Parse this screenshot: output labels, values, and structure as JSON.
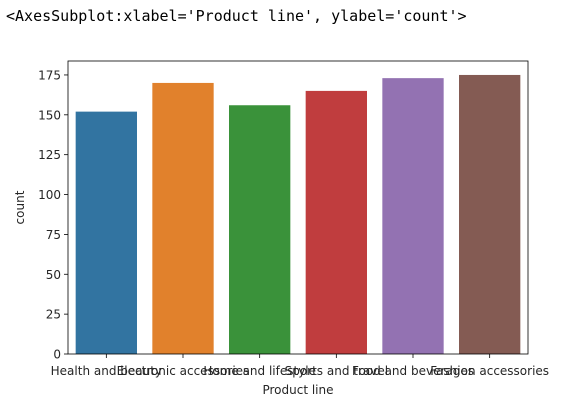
{
  "output": {
    "repr_text": "<AxesSubplot:xlabel='Product line', ylabel='count'>"
  },
  "chart_data": {
    "type": "bar",
    "title": "",
    "xlabel": "Product line",
    "ylabel": "count",
    "categories": [
      "Health and beauty",
      "Electronic accessories",
      "Home and lifestyle",
      "Sports and travel",
      "Food and beverages",
      "Fashion accessories"
    ],
    "values": [
      152,
      170,
      156,
      165,
      173,
      175
    ],
    "colors": [
      "#3274a1",
      "#e1812c",
      "#3a923a",
      "#c03d3e",
      "#9372b2",
      "#845b53"
    ],
    "ylim": [
      0,
      183.75
    ],
    "yticks": [
      0,
      25,
      50,
      75,
      100,
      125,
      150,
      175
    ],
    "grid": false,
    "legend": "none"
  }
}
